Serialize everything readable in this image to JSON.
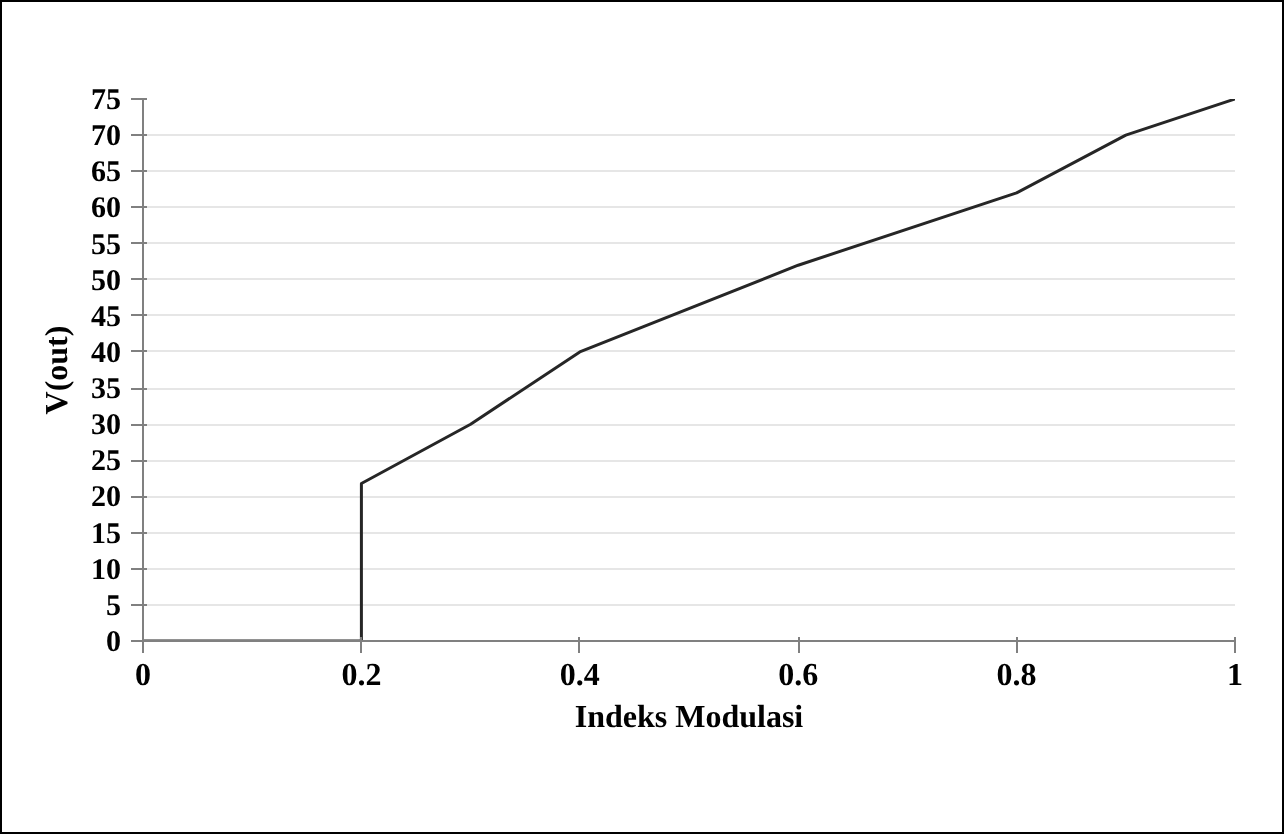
{
  "chart_data": {
    "type": "line",
    "xlabel": "Indeks Modulasi",
    "ylabel": "V(out)",
    "series": [
      {
        "color": "#262626",
        "x": [
          0,
          0.2,
          0.2,
          0.3,
          0.4,
          0.6,
          0.8,
          0.9,
          1
        ],
        "values": [
          0,
          0,
          21.8,
          30,
          40,
          52,
          62,
          70,
          75
        ]
      }
    ],
    "xlim": [
      0,
      1
    ],
    "ylim": [
      0,
      75
    ],
    "xticks": [
      0,
      0.2,
      0.4,
      0.6,
      0.8,
      1
    ],
    "yticks": [
      0,
      5,
      10,
      15,
      20,
      25,
      30,
      35,
      40,
      45,
      50,
      55,
      60,
      65,
      70,
      75
    ],
    "grid": "y",
    "marker": "none",
    "line_style": "solid"
  }
}
